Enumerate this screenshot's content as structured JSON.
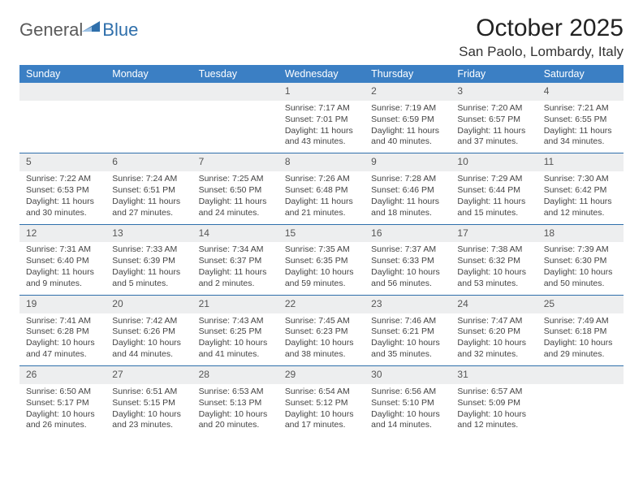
{
  "logo": {
    "general": "General",
    "blue": "Blue"
  },
  "title": "October 2025",
  "location": "San Paolo, Lombardy, Italy",
  "colors": {
    "header_bar": "#3b7fc4",
    "row_divider": "#2f6fab",
    "daynum_bg": "#edeeef",
    "text": "#333333",
    "logo_blue": "#2f6fab",
    "logo_gray": "#5a5a5a"
  },
  "weekdays": [
    "Sunday",
    "Monday",
    "Tuesday",
    "Wednesday",
    "Thursday",
    "Friday",
    "Saturday"
  ],
  "weeks": [
    [
      null,
      null,
      null,
      {
        "n": "1",
        "sunrise": "7:17 AM",
        "sunset": "7:01 PM",
        "daylight": "11 hours and 43 minutes."
      },
      {
        "n": "2",
        "sunrise": "7:19 AM",
        "sunset": "6:59 PM",
        "daylight": "11 hours and 40 minutes."
      },
      {
        "n": "3",
        "sunrise": "7:20 AM",
        "sunset": "6:57 PM",
        "daylight": "11 hours and 37 minutes."
      },
      {
        "n": "4",
        "sunrise": "7:21 AM",
        "sunset": "6:55 PM",
        "daylight": "11 hours and 34 minutes."
      }
    ],
    [
      {
        "n": "5",
        "sunrise": "7:22 AM",
        "sunset": "6:53 PM",
        "daylight": "11 hours and 30 minutes."
      },
      {
        "n": "6",
        "sunrise": "7:24 AM",
        "sunset": "6:51 PM",
        "daylight": "11 hours and 27 minutes."
      },
      {
        "n": "7",
        "sunrise": "7:25 AM",
        "sunset": "6:50 PM",
        "daylight": "11 hours and 24 minutes."
      },
      {
        "n": "8",
        "sunrise": "7:26 AM",
        "sunset": "6:48 PM",
        "daylight": "11 hours and 21 minutes."
      },
      {
        "n": "9",
        "sunrise": "7:28 AM",
        "sunset": "6:46 PM",
        "daylight": "11 hours and 18 minutes."
      },
      {
        "n": "10",
        "sunrise": "7:29 AM",
        "sunset": "6:44 PM",
        "daylight": "11 hours and 15 minutes."
      },
      {
        "n": "11",
        "sunrise": "7:30 AM",
        "sunset": "6:42 PM",
        "daylight": "11 hours and 12 minutes."
      }
    ],
    [
      {
        "n": "12",
        "sunrise": "7:31 AM",
        "sunset": "6:40 PM",
        "daylight": "11 hours and 9 minutes."
      },
      {
        "n": "13",
        "sunrise": "7:33 AM",
        "sunset": "6:39 PM",
        "daylight": "11 hours and 5 minutes."
      },
      {
        "n": "14",
        "sunrise": "7:34 AM",
        "sunset": "6:37 PM",
        "daylight": "11 hours and 2 minutes."
      },
      {
        "n": "15",
        "sunrise": "7:35 AM",
        "sunset": "6:35 PM",
        "daylight": "10 hours and 59 minutes."
      },
      {
        "n": "16",
        "sunrise": "7:37 AM",
        "sunset": "6:33 PM",
        "daylight": "10 hours and 56 minutes."
      },
      {
        "n": "17",
        "sunrise": "7:38 AM",
        "sunset": "6:32 PM",
        "daylight": "10 hours and 53 minutes."
      },
      {
        "n": "18",
        "sunrise": "7:39 AM",
        "sunset": "6:30 PM",
        "daylight": "10 hours and 50 minutes."
      }
    ],
    [
      {
        "n": "19",
        "sunrise": "7:41 AM",
        "sunset": "6:28 PM",
        "daylight": "10 hours and 47 minutes."
      },
      {
        "n": "20",
        "sunrise": "7:42 AM",
        "sunset": "6:26 PM",
        "daylight": "10 hours and 44 minutes."
      },
      {
        "n": "21",
        "sunrise": "7:43 AM",
        "sunset": "6:25 PM",
        "daylight": "10 hours and 41 minutes."
      },
      {
        "n": "22",
        "sunrise": "7:45 AM",
        "sunset": "6:23 PM",
        "daylight": "10 hours and 38 minutes."
      },
      {
        "n": "23",
        "sunrise": "7:46 AM",
        "sunset": "6:21 PM",
        "daylight": "10 hours and 35 minutes."
      },
      {
        "n": "24",
        "sunrise": "7:47 AM",
        "sunset": "6:20 PM",
        "daylight": "10 hours and 32 minutes."
      },
      {
        "n": "25",
        "sunrise": "7:49 AM",
        "sunset": "6:18 PM",
        "daylight": "10 hours and 29 minutes."
      }
    ],
    [
      {
        "n": "26",
        "sunrise": "6:50 AM",
        "sunset": "5:17 PM",
        "daylight": "10 hours and 26 minutes."
      },
      {
        "n": "27",
        "sunrise": "6:51 AM",
        "sunset": "5:15 PM",
        "daylight": "10 hours and 23 minutes."
      },
      {
        "n": "28",
        "sunrise": "6:53 AM",
        "sunset": "5:13 PM",
        "daylight": "10 hours and 20 minutes."
      },
      {
        "n": "29",
        "sunrise": "6:54 AM",
        "sunset": "5:12 PM",
        "daylight": "10 hours and 17 minutes."
      },
      {
        "n": "30",
        "sunrise": "6:56 AM",
        "sunset": "5:10 PM",
        "daylight": "10 hours and 14 minutes."
      },
      {
        "n": "31",
        "sunrise": "6:57 AM",
        "sunset": "5:09 PM",
        "daylight": "10 hours and 12 minutes."
      },
      null
    ]
  ]
}
